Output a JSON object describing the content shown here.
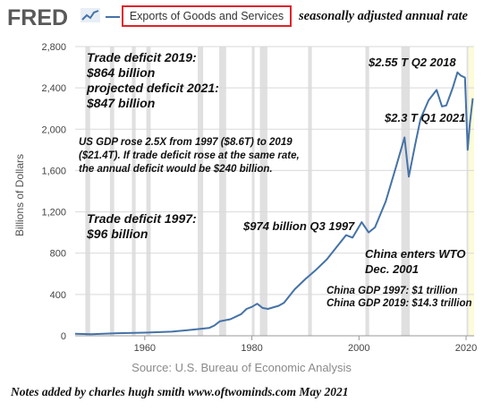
{
  "header": {
    "logo_text": "FRED",
    "logo_icon": "line-chart-icon",
    "series_title": "Exports of Goods and Services",
    "note": "seasonally adjusted annual rate"
  },
  "source": "Source: U.S. Bureau of Economic Analysis",
  "footer_note": "Notes added by charles hugh smith   www.oftwominds.com   May 2021",
  "annotations": {
    "deficit_2019_l1": "Trade deficit 2019:",
    "deficit_2019_l2": "$864 billion",
    "deficit_2021_l1": "projected deficit 2021:",
    "deficit_2021_l2": "$847 billion",
    "gdp_l1": "US GDP rose 2.5X from 1997 ($8.6T) to 2019",
    "gdp_l2": "($21.4T). If trade deficit rose at the same rate,",
    "gdp_l3": "the annual deficit would be $240 billion.",
    "deficit_1997_l1": "Trade deficit 1997:",
    "deficit_1997_l2": "$96 billion",
    "peak_2018": "$2.55 T   Q2 2018",
    "q1_2021": "$2.3 T   Q1 2021",
    "q3_1997": "$974 billion  Q3 1997",
    "wto_l1": "China enters WTO",
    "wto_l2": "Dec. 2001",
    "china_1997": "China GDP 1997: $1 trillion",
    "china_2019": "China GDP 2019: $14.3 trillion"
  },
  "colors": {
    "line": "#4572a7",
    "recession": "#e0e0e0",
    "highlight": "#fdfbd8",
    "grid": "#d9d9d9",
    "box_border": "#e0242a"
  },
  "chart_data": {
    "type": "line",
    "title": "Exports of Goods and Services",
    "subtitle": "seasonally adjusted annual rate",
    "xlabel": "",
    "ylabel": "Billions of Dollars",
    "xlim": [
      1947,
      2021.5
    ],
    "ylim": [
      0,
      2800
    ],
    "x_ticks": [
      1960,
      1980,
      2000,
      2020
    ],
    "y_ticks": [
      0,
      400,
      800,
      1200,
      1600,
      2000,
      2400,
      2800
    ],
    "grid": "horizontal",
    "shading": "recessions",
    "recessions": [
      [
        1948.9,
        1949.8
      ],
      [
        1953.5,
        1954.3
      ],
      [
        1957.6,
        1958.3
      ],
      [
        1960.3,
        1961.1
      ],
      [
        1969.9,
        1970.9
      ],
      [
        1973.9,
        1975.2
      ],
      [
        1980.0,
        1980.5
      ],
      [
        1981.5,
        1982.9
      ],
      [
        1990.5,
        1991.2
      ],
      [
        2001.2,
        2001.9
      ],
      [
        2007.9,
        2009.5
      ],
      [
        2020.1,
        2020.4
      ]
    ],
    "series": [
      {
        "name": "Exports of Goods and Services",
        "x": [
          1947,
          1950,
          1955,
          1960,
          1965,
          1968,
          1970,
          1972,
          1973,
          1974,
          1976,
          1978,
          1979,
          1980,
          1981,
          1982,
          1983,
          1985,
          1986,
          1988,
          1990,
          1992,
          1994,
          1996,
          1997.6,
          1998.8,
          2000.5,
          2001.8,
          2003,
          2005,
          2007,
          2008.5,
          2009.3,
          2010.5,
          2011.5,
          2013,
          2014.5,
          2015.5,
          2016.3,
          2017.5,
          2018.4,
          2019,
          2019.8,
          2020.3,
          2020.7,
          2021.25
        ],
        "y": [
          20,
          15,
          25,
          30,
          40,
          55,
          65,
          75,
          100,
          140,
          160,
          210,
          260,
          280,
          310,
          270,
          260,
          290,
          320,
          450,
          550,
          640,
          740,
          870,
          974,
          950,
          1100,
          1000,
          1050,
          1300,
          1650,
          1920,
          1540,
          1850,
          2100,
          2280,
          2380,
          2220,
          2230,
          2400,
          2550,
          2520,
          2500,
          1800,
          2050,
          2300
        ]
      }
    ]
  }
}
